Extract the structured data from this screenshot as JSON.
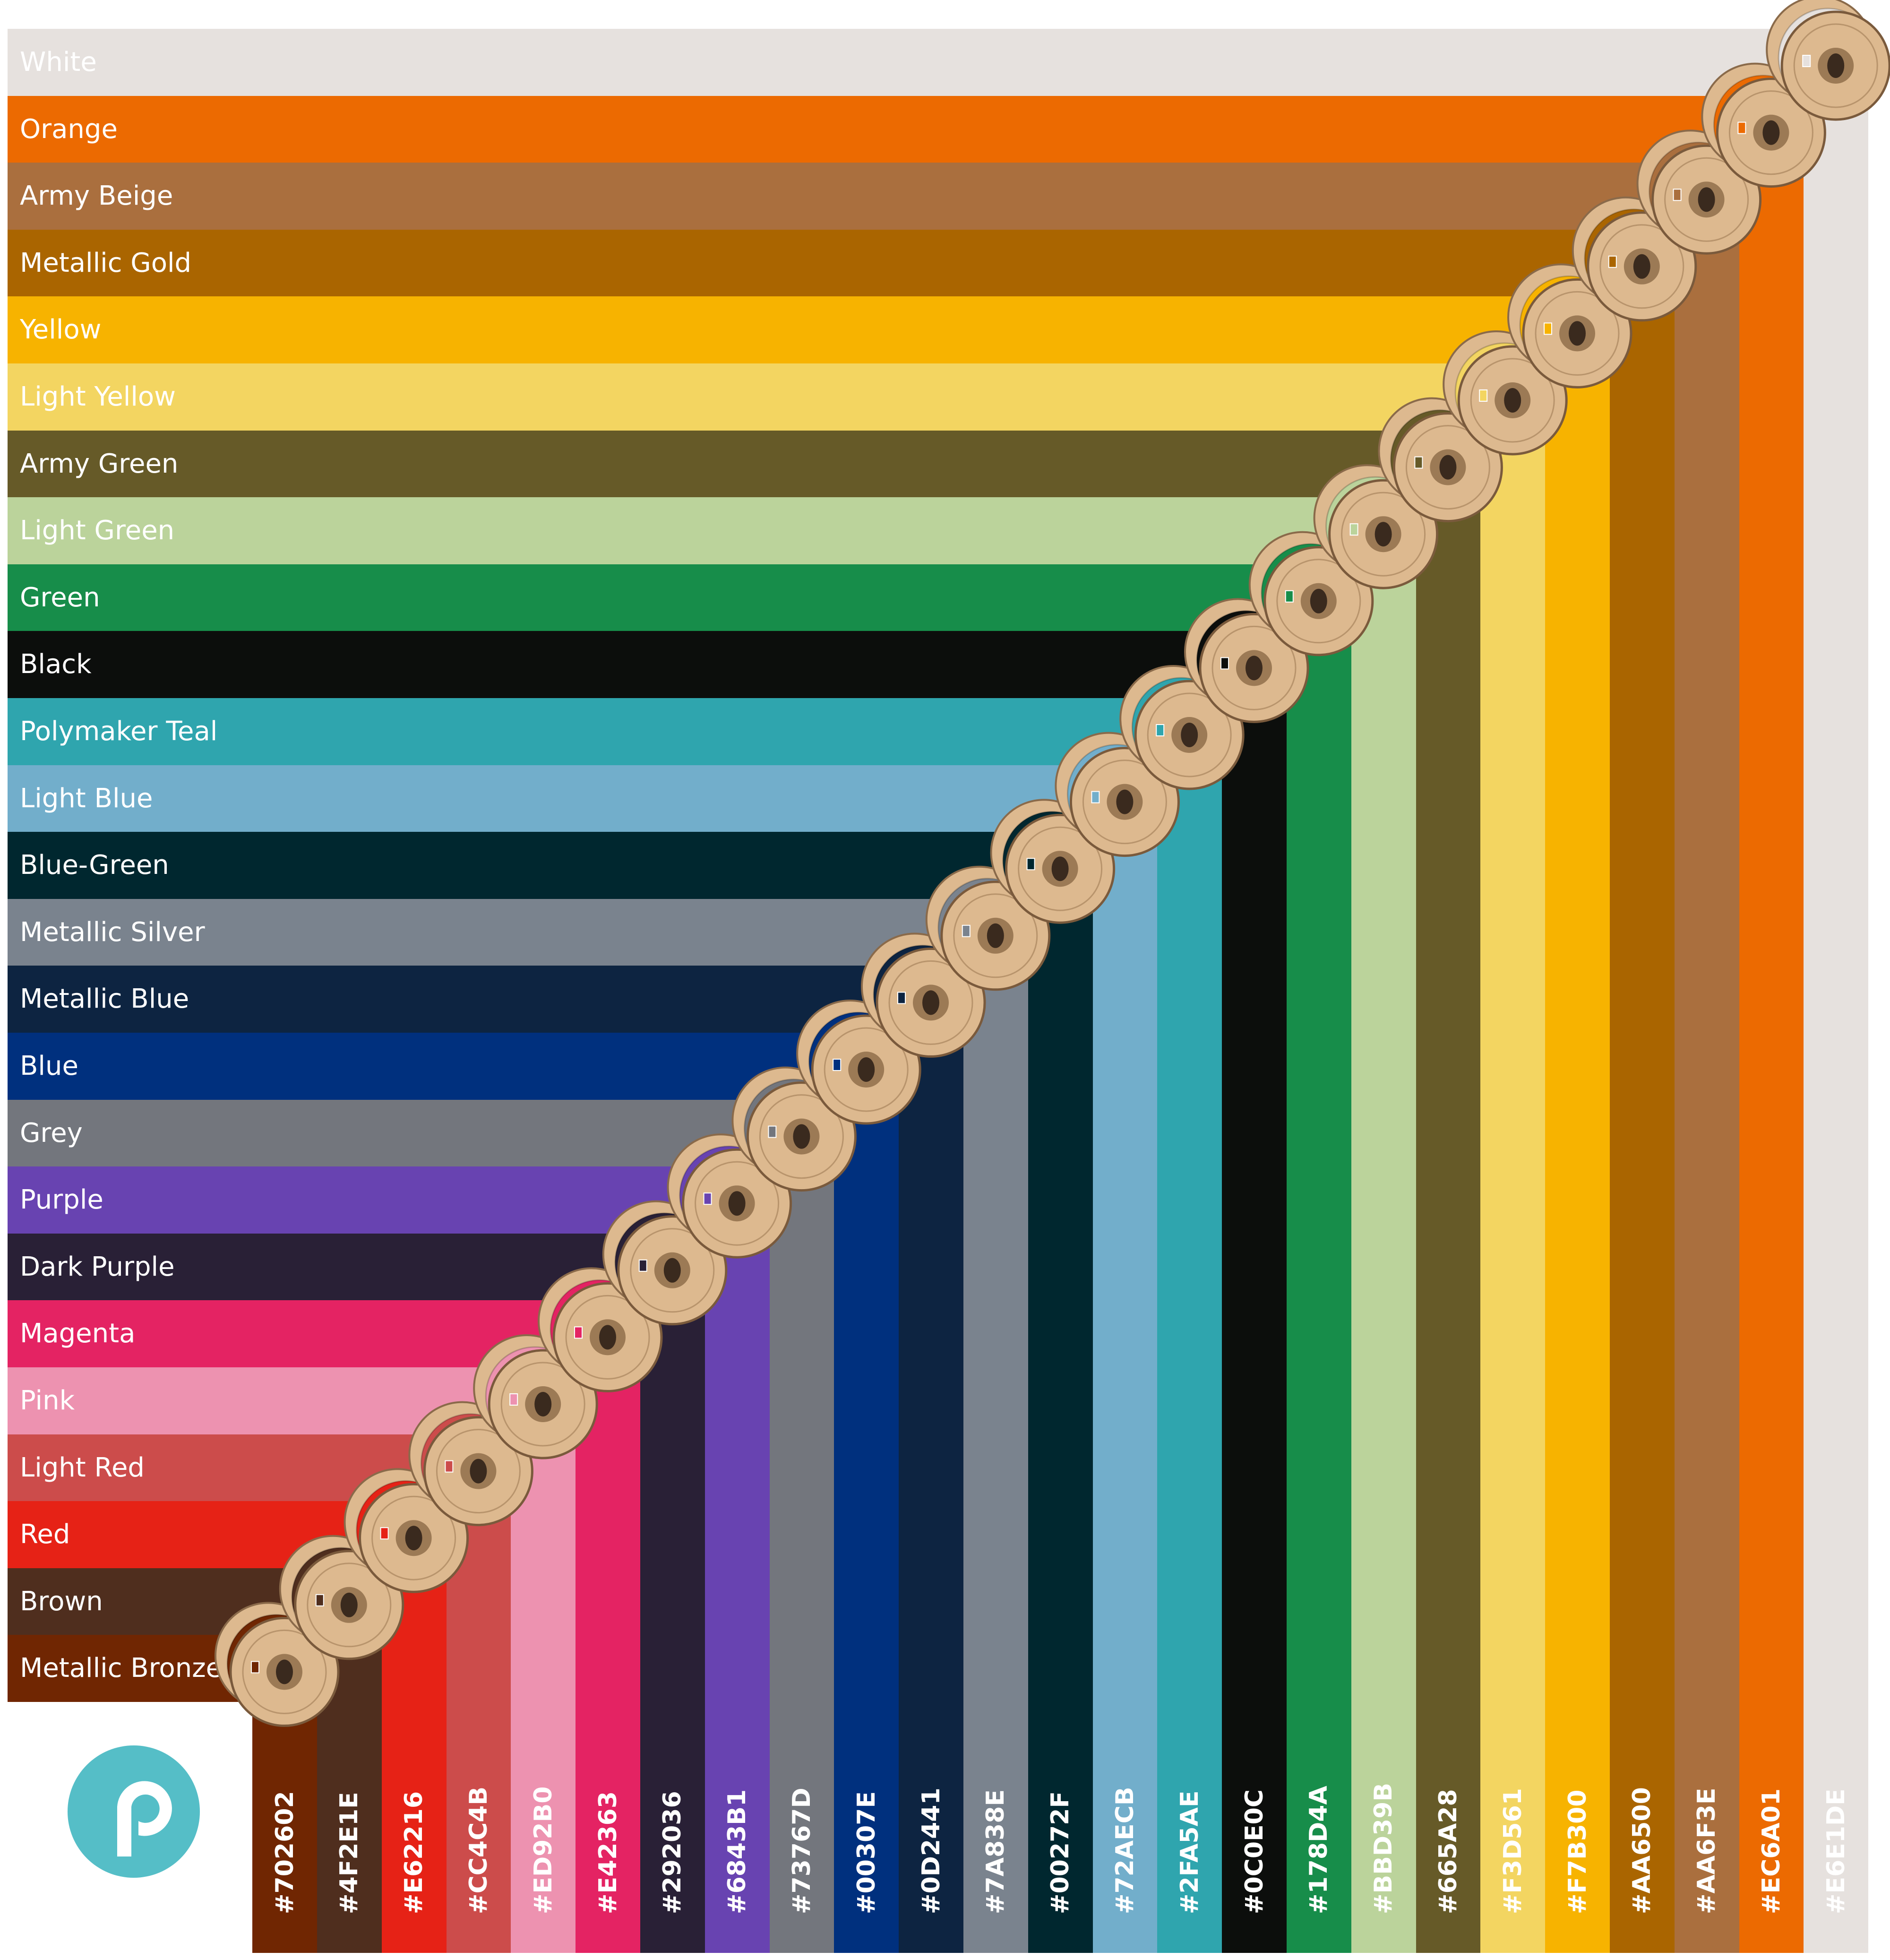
{
  "colors": [
    {
      "name": "White",
      "hex": "#E6E1DE"
    },
    {
      "name": "Orange",
      "hex": "#EC6A01"
    },
    {
      "name": "Army Beige",
      "hex": "#AA6F3E"
    },
    {
      "name": "Metallic Gold",
      "hex": "#AA6500"
    },
    {
      "name": "Yellow",
      "hex": "#F7B300"
    },
    {
      "name": "Light Yellow",
      "hex": "#F3D561"
    },
    {
      "name": "Army Green",
      "hex": "#665A28"
    },
    {
      "name": "Light Green",
      "hex": "#BBD39B"
    },
    {
      "name": "Green",
      "hex": "#178D4A"
    },
    {
      "name": "Black",
      "hex": "#0C0E0C"
    },
    {
      "name": "Polymaker Teal",
      "hex": "#2FA5AE"
    },
    {
      "name": "Light Blue",
      "hex": "#72AECB"
    },
    {
      "name": "Blue-Green",
      "hex": "#00272F"
    },
    {
      "name": "Metallic Silver",
      "hex": "#7A838E"
    },
    {
      "name": "Metallic Blue",
      "hex": "#0D2441"
    },
    {
      "name": "Blue",
      "hex": "#00307E"
    },
    {
      "name": "Grey",
      "hex": "#73767D"
    },
    {
      "name": "Purple",
      "hex": "#6843B1"
    },
    {
      "name": "Dark Purple",
      "hex": "#292036"
    },
    {
      "name": "Magenta",
      "hex": "#E42363"
    },
    {
      "name": "Pink",
      "hex": "#ED92B0"
    },
    {
      "name": "Light Red",
      "hex": "#CC4C4B"
    },
    {
      "name": "Red",
      "hex": "#E62216"
    },
    {
      "name": "Brown",
      "hex": "#4F2E1E"
    },
    {
      "name": "Metallic Bronze",
      "hex": "#702602"
    }
  ],
  "logo": {
    "brand": "polymaker",
    "color": "#55BEC7"
  },
  "spool": {
    "flange_color": "#DDB98F",
    "hub_color": "#3A2A1E"
  }
}
